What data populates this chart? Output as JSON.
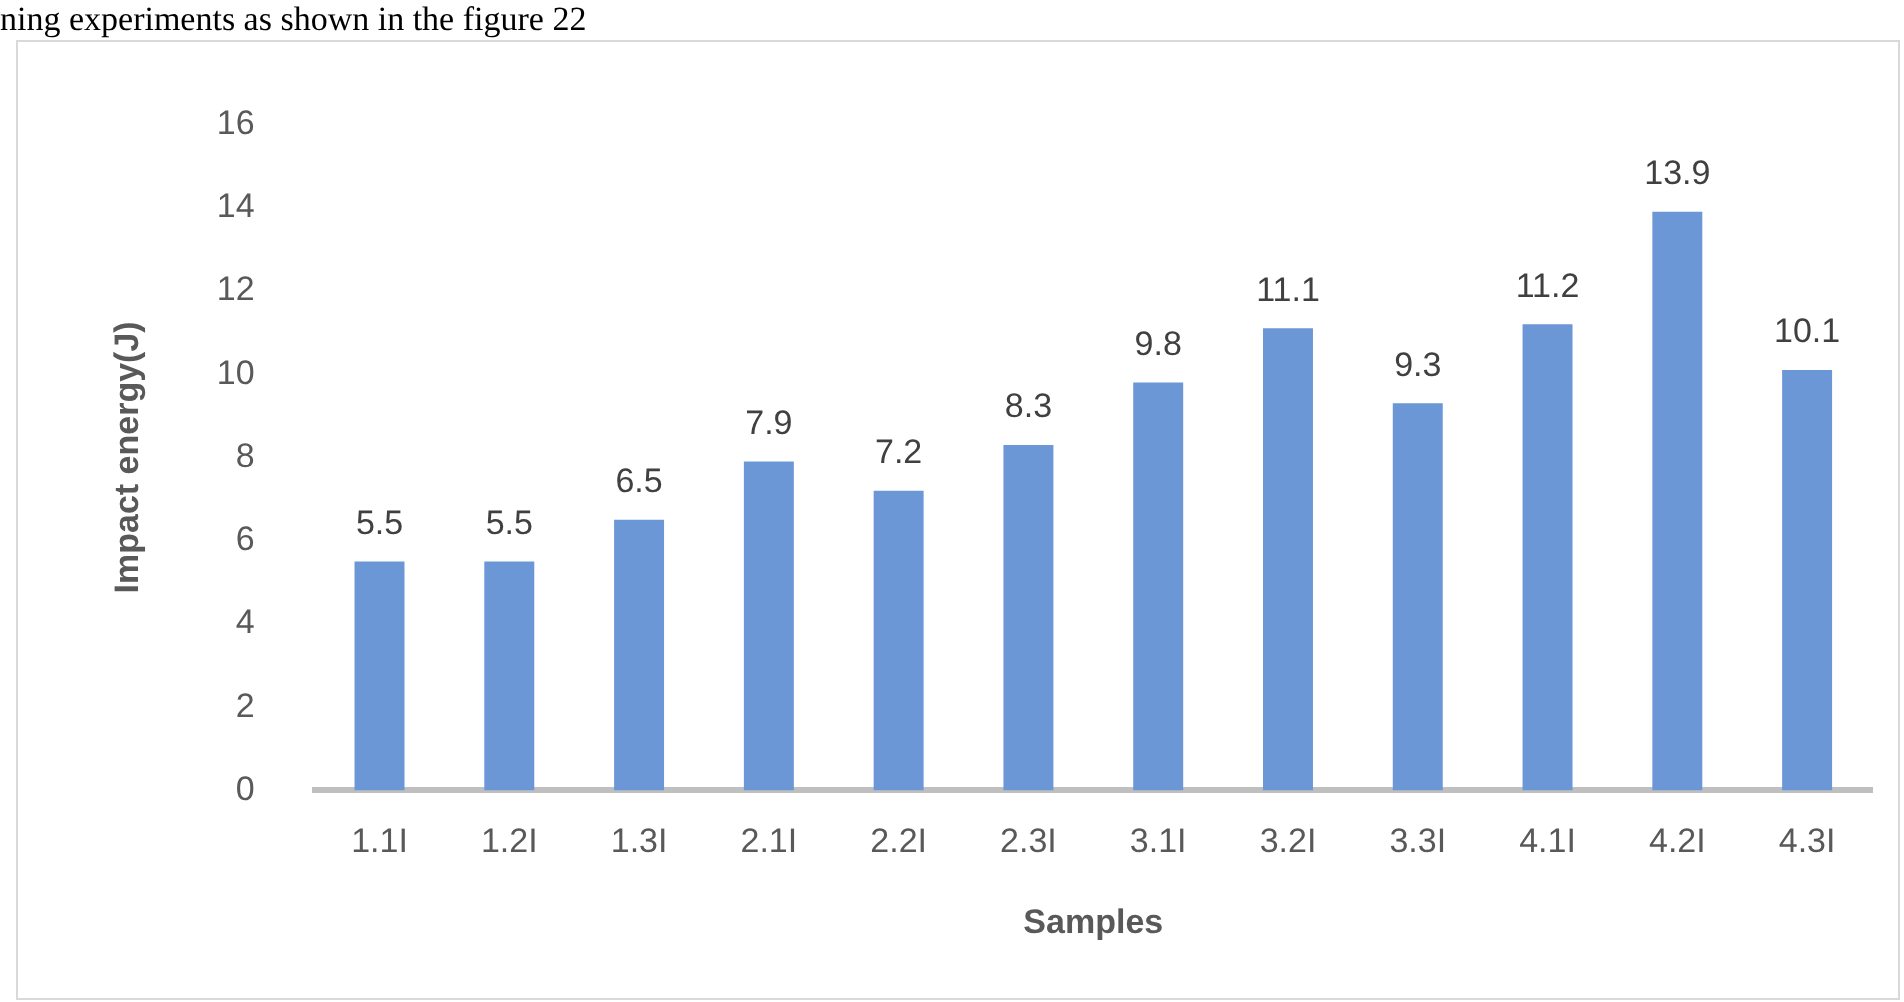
{
  "chart_data": {
    "type": "bar",
    "xlabel": "Samples",
    "ylabel": "Impact energy(J)",
    "annotations": [
      "ning experiments as shown in the figure 22"
    ],
    "categories": [
      "1.1I",
      "1.2I",
      "1.3I",
      "2.1I",
      "2.2I",
      "2.3I",
      "3.1I",
      "3.2I",
      "3.3I",
      "4.1I",
      "4.2I",
      "4.3I"
    ],
    "values": [
      5.5,
      5.5,
      6.5,
      7.9,
      7.2,
      8.3,
      9.8,
      11.1,
      9.3,
      11.2,
      13.9,
      10.1
    ],
    "color": "#6b97d6",
    "ylim": [
      0,
      16
    ],
    "yticks": [
      0,
      2,
      4,
      6,
      8,
      10,
      12,
      14,
      16
    ],
    "grid": false,
    "data_labels": true,
    "legend": false
  }
}
